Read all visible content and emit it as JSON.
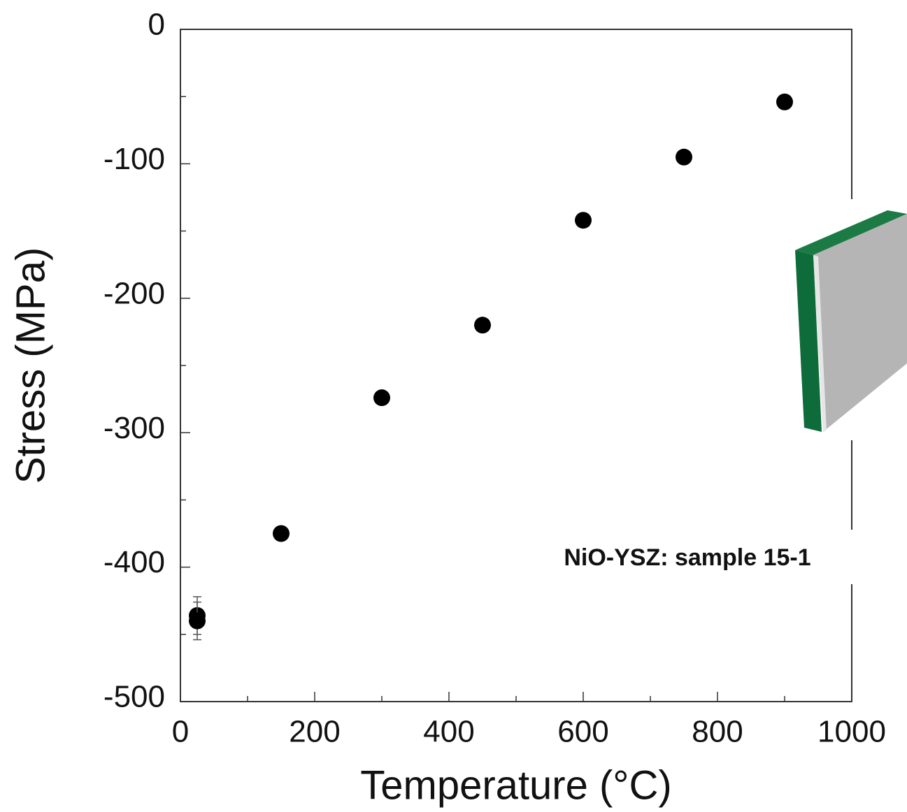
{
  "chart_data": {
    "type": "scatter",
    "xlabel": "Temperature (°C)",
    "ylabel": "Stress (MPa)",
    "annotation": "NiO-YSZ: sample 15-1",
    "x": [
      25,
      25,
      150,
      300,
      450,
      600,
      750,
      900
    ],
    "values": [
      -436,
      -440,
      -375,
      -274,
      -220,
      -142,
      -95,
      -54
    ],
    "errors": [
      14,
      14,
      4,
      5,
      5,
      2,
      2,
      3
    ],
    "color": "#000000",
    "xlim": [
      0,
      1000
    ],
    "ylim": [
      -500,
      0
    ],
    "xticks": [
      0,
      200,
      400,
      600,
      800,
      1000
    ],
    "yticks": [
      -500,
      -400,
      -300,
      -200,
      -100,
      0
    ]
  }
}
